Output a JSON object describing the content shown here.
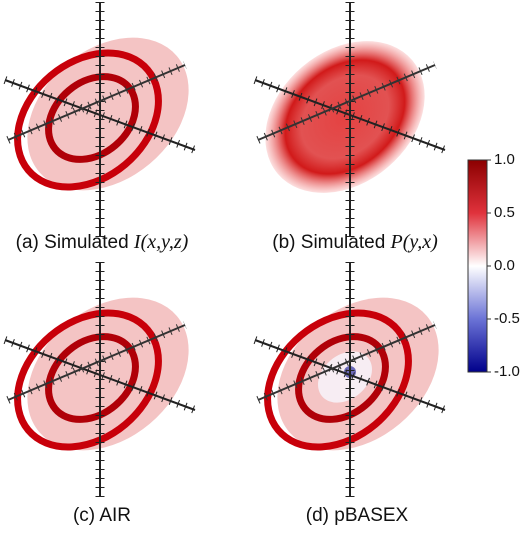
{
  "panels": [
    {
      "label": "(a) Simulated",
      "math": "I(x,y,z)"
    },
    {
      "label": "(b) Simulated",
      "math": "P(y,x)"
    },
    {
      "label": "(c) AIR"
    },
    {
      "label": "(d) pBASEX"
    }
  ],
  "colorbar": {
    "lim": [
      -1.0,
      1.0
    ],
    "ticks": [
      {
        "value": 1.0,
        "label": "1.0"
      },
      {
        "value": 0.5,
        "label": "0.5"
      },
      {
        "value": 0.0,
        "label": "0.0"
      },
      {
        "value": -0.5,
        "label": "-0.5"
      },
      {
        "value": -1.0,
        "label": "-1.0"
      }
    ]
  }
}
